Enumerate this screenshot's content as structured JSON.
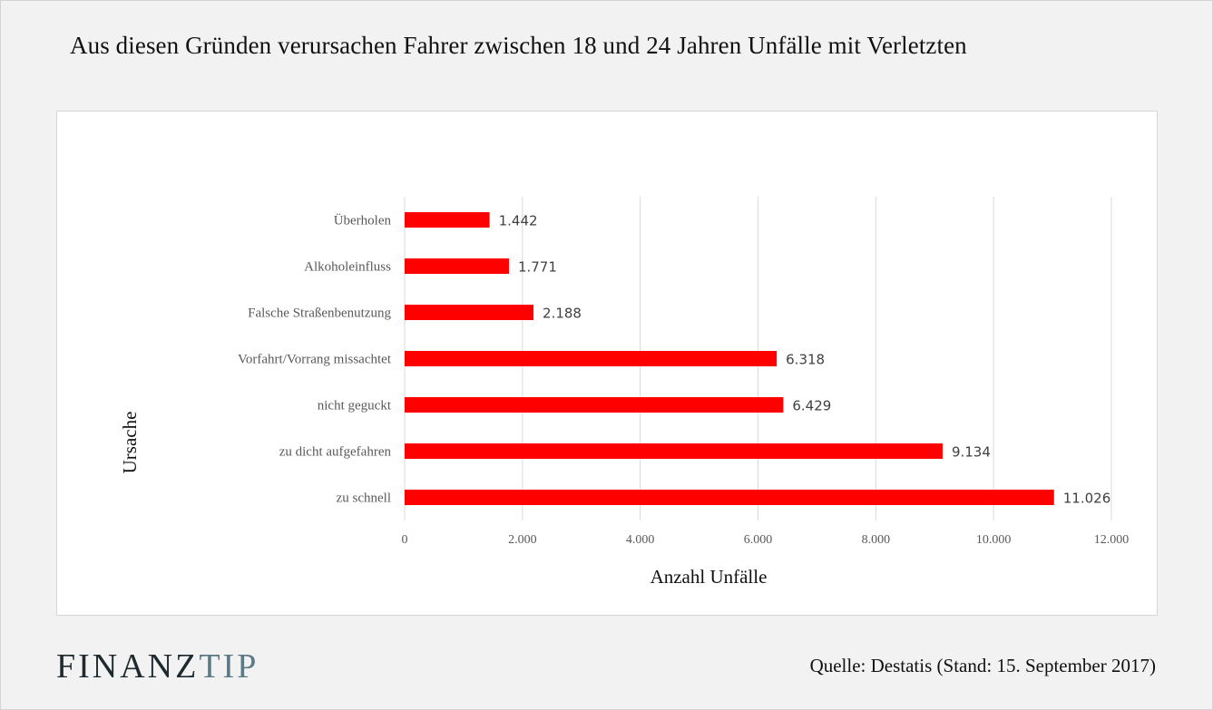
{
  "page": {
    "title": "Aus diesen Gründen verursachen Fahrer zwischen 18 und 24 Jahren Unfälle mit Verletzten",
    "source": "Quelle: Destatis (Stand: 15. September 2017)",
    "logo": {
      "part1": "FINANZ",
      "part2": "TIP"
    }
  },
  "chart_data": {
    "type": "bar",
    "orientation": "horizontal",
    "categories": [
      "Überholen",
      "Alkoholeinfluss",
      "Falsche Straßenbenutzung",
      "Vorfahrt/Vorrang missachtet",
      "nicht geguckt",
      "zu dicht aufgefahren",
      "zu schnell"
    ],
    "values": [
      1442,
      1771,
      2188,
      6318,
      6429,
      9134,
      11026
    ],
    "data_labels": [
      "1.442",
      "1.771",
      "2.188",
      "6.318",
      "6.429",
      "9.134",
      "11.026"
    ],
    "xlabel": "Anzahl Unfälle",
    "ylabel": "Ursache",
    "xlim": [
      0,
      12000
    ],
    "x_ticks": [
      0,
      2000,
      4000,
      6000,
      8000,
      10000,
      12000
    ],
    "x_tick_labels": [
      "0",
      "2.000",
      "4.000",
      "6.000",
      "8.000",
      "10.000",
      "12.000"
    ],
    "grid": "vertical",
    "legend": "none",
    "colors": {
      "bar": "#ff0000",
      "grid": "#d9d9d9",
      "text": "#595959"
    }
  }
}
